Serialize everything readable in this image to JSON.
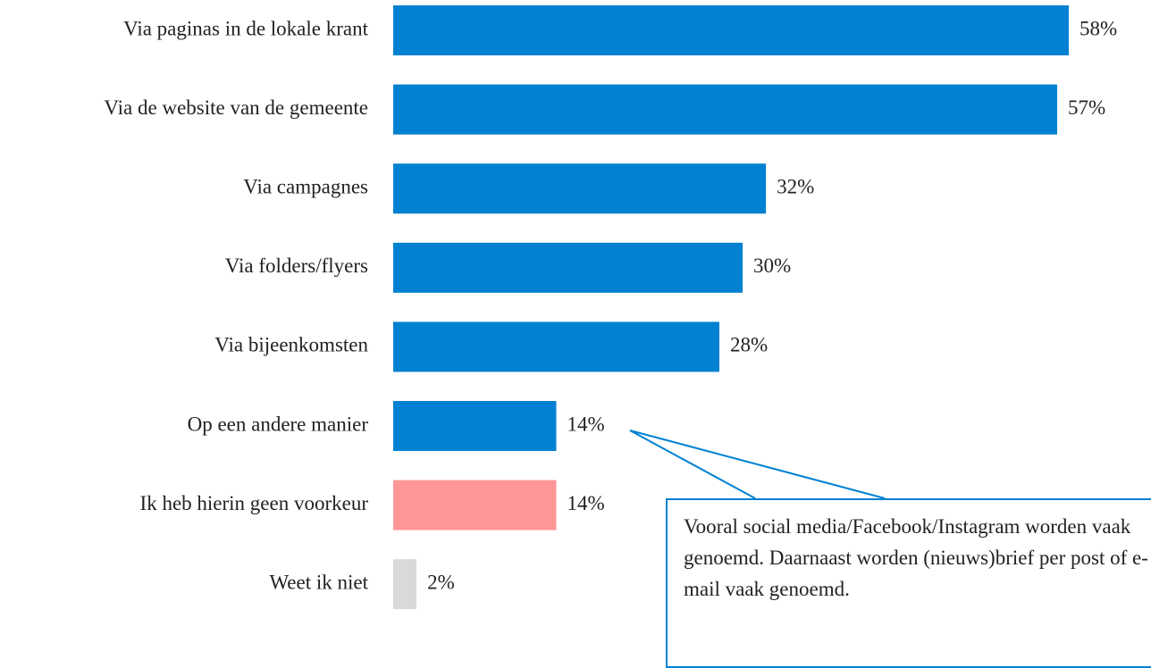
{
  "chart_data": {
    "type": "bar",
    "orientation": "horizontal",
    "categories": [
      "Via paginas in de lokale krant",
      "Via de website van de gemeente",
      "Via campagnes",
      "Via folders/flyers",
      "Via bijeenkomsten",
      "Op een andere manier",
      "Ik heb hierin geen voorkeur",
      "Weet ik niet"
    ],
    "values": [
      58,
      57,
      32,
      30,
      28,
      14,
      14,
      2
    ],
    "value_labels": [
      "58%",
      "57%",
      "32%",
      "30%",
      "28%",
      "14%",
      "14%",
      "2%"
    ],
    "colors": [
      "#0081d1",
      "#0081d1",
      "#0081d1",
      "#0081d1",
      "#0081d1",
      "#0081d1",
      "#ff9696",
      "#d9d9d9"
    ],
    "annotation": "Vooral social media/Facebook/Instagram worden vaak genoemd. Daarnaast worden (nieuws)brief per post of e-mail vaak genoemd."
  }
}
